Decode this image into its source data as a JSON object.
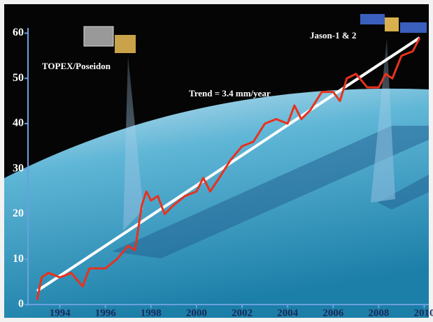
{
  "chart_data": {
    "type": "line",
    "x": [
      1993.0,
      1993.2,
      1993.5,
      1994.0,
      1994.5,
      1995.0,
      1995.3,
      1996.0,
      1996.5,
      1997.0,
      1997.3,
      1997.6,
      1997.8,
      1998.0,
      1998.3,
      1998.6,
      1999.0,
      1999.5,
      2000.0,
      2000.3,
      2000.6,
      2001.0,
      2001.5,
      2002.0,
      2002.5,
      2003.0,
      2003.5,
      2004.0,
      2004.3,
      2004.6,
      2005.0,
      2005.5,
      2006.0,
      2006.3,
      2006.6,
      2007.0,
      2007.5,
      2008.0,
      2008.3,
      2008.6,
      2009.0,
      2009.5,
      2009.8
    ],
    "series": [
      {
        "color": "#e8321e",
        "values": [
          1,
          6,
          7,
          6,
          7,
          4,
          8,
          8,
          10,
          13,
          12,
          22,
          25,
          23,
          24,
          20,
          22,
          24,
          25,
          28,
          25,
          28,
          32,
          35,
          36,
          40,
          41,
          40,
          44,
          41,
          43,
          47,
          47,
          45,
          50,
          51,
          48,
          48,
          51,
          50,
          55,
          56,
          59
        ]
      }
    ],
    "trend": {
      "x": [
        1993.0,
        2009.8
      ],
      "values": [
        3,
        59
      ],
      "color": "#ffffff"
    },
    "annotations": [
      "TOPEX/Poseidon",
      "Jason-1 & 2",
      "Trend = 3.4 mm/year"
    ],
    "xlim": [
      1992.6,
      2010.2
    ],
    "xticks": [
      1994,
      1996,
      1998,
      2000,
      2002,
      2004,
      2006,
      2008,
      2010
    ],
    "ylim": [
      0,
      61
    ],
    "yticks": [
      0,
      10,
      20,
      30,
      40,
      50,
      60
    ]
  }
}
